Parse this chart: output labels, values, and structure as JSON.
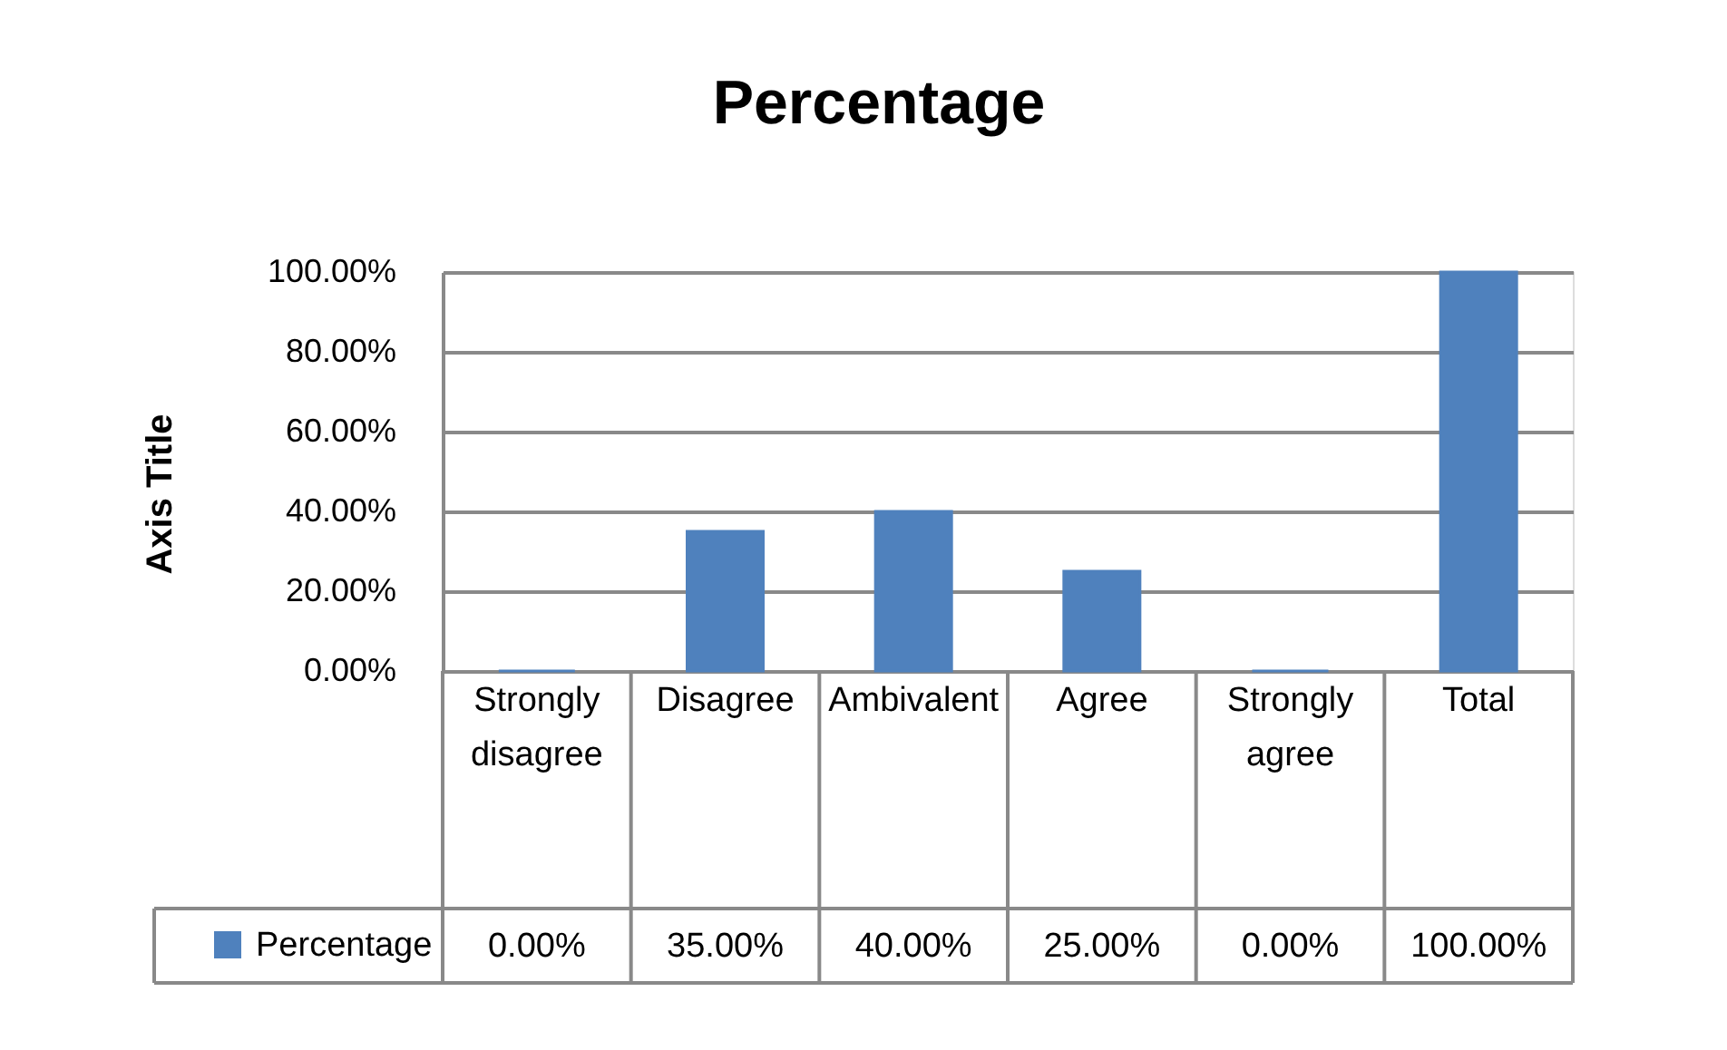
{
  "chart_data": {
    "type": "bar",
    "title": "Percentage",
    "ylabel": "Axis Title",
    "categories": [
      "Strongly disagree",
      "Disagree",
      "Ambivalent",
      "Agree",
      "Strongly agree",
      "Total"
    ],
    "series": [
      {
        "name": "Percentage",
        "color": "#4f81bd",
        "values": [
          0,
          35,
          40,
          25,
          0,
          100
        ],
        "value_labels": [
          "0.00%",
          "35.00%",
          "40.00%",
          "25.00%",
          "0.00%",
          "100.00%"
        ]
      }
    ],
    "ylim": [
      0,
      100
    ],
    "yticks": [
      {
        "value": 0,
        "label": "0.00%"
      },
      {
        "value": 20,
        "label": "20.00%"
      },
      {
        "value": 40,
        "label": "40.00%"
      },
      {
        "value": 60,
        "label": "60.00%"
      },
      {
        "value": 80,
        "label": "80.00%"
      },
      {
        "value": 100,
        "label": "100.00%"
      }
    ],
    "grid": "y",
    "legend": "bottom left"
  }
}
